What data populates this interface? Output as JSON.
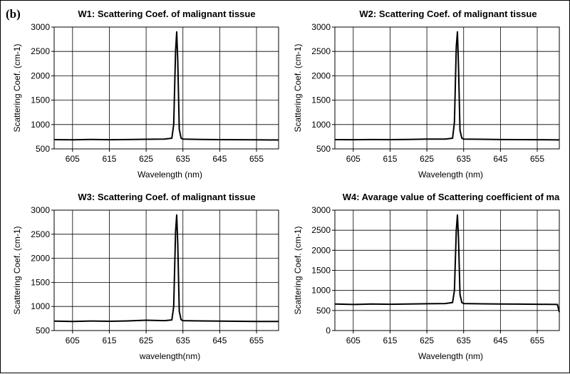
{
  "figure": {
    "panel_label": "(b)"
  },
  "chart_data": [
    {
      "type": "line",
      "title": "W1: Scattering Coef. of malignant tissue",
      "xlabel": "Wavelength (nm)",
      "ylabel": "Scattering Coef. (cm-1)",
      "xlim": [
        600,
        661
      ],
      "ylim": [
        500,
        3000
      ],
      "xticks": [
        605,
        615,
        625,
        635,
        645,
        655
      ],
      "yticks": [
        500,
        1000,
        1500,
        2000,
        2500,
        3000
      ],
      "grid": true,
      "series": [
        {
          "x": [
            600,
            605,
            610,
            615,
            620,
            625,
            630,
            632,
            632.5,
            633,
            633.3,
            633.6,
            634,
            634.5,
            635,
            640,
            645,
            650,
            655,
            661
          ],
          "y": [
            690,
            685,
            695,
            688,
            692,
            698,
            700,
            720,
            1000,
            2500,
            2900,
            2300,
            900,
            720,
            700,
            695,
            690,
            688,
            685,
            683
          ]
        }
      ]
    },
    {
      "type": "line",
      "title": "W2: Scattering Coef. of malignant tissue",
      "xlabel": "Wavelength (nm)",
      "ylabel": "Scattering Coef. (cm-1)",
      "xlim": [
        600,
        661
      ],
      "ylim": [
        500,
        3000
      ],
      "xticks": [
        605,
        615,
        625,
        635,
        645,
        655
      ],
      "yticks": [
        500,
        1000,
        1500,
        2000,
        2500,
        3000
      ],
      "grid": true,
      "series": [
        {
          "x": [
            600,
            605,
            610,
            615,
            620,
            625,
            630,
            632,
            632.5,
            633,
            633.3,
            633.6,
            634,
            634.5,
            635,
            640,
            645,
            650,
            655,
            661
          ],
          "y": [
            690,
            688,
            692,
            690,
            695,
            700,
            702,
            720,
            1050,
            2600,
            2900,
            2200,
            880,
            720,
            700,
            697,
            692,
            690,
            688,
            684
          ]
        }
      ]
    },
    {
      "type": "line",
      "title": "W3: Scattering Coef. of malignant tissue",
      "xlabel": "wavelength(nm)",
      "ylabel": "Scattering Coef. (cm-1)",
      "xlim": [
        600,
        661
      ],
      "ylim": [
        500,
        3000
      ],
      "xticks": [
        605,
        615,
        625,
        635,
        645,
        655
      ],
      "yticks": [
        500,
        1000,
        1500,
        2000,
        2500,
        3000
      ],
      "grid": true,
      "series": [
        {
          "x": [
            600,
            605,
            610,
            615,
            620,
            625,
            630,
            632,
            632.5,
            633,
            633.3,
            633.6,
            634,
            634.5,
            635,
            640,
            645,
            650,
            655,
            661
          ],
          "y": [
            695,
            690,
            698,
            692,
            700,
            715,
            705,
            720,
            1000,
            2550,
            2900,
            2300,
            900,
            725,
            705,
            700,
            695,
            692,
            690,
            688
          ]
        }
      ]
    },
    {
      "type": "line",
      "title": "W4: Avarage value of Scattering coefficient of ma",
      "xlabel": "Wavelength (nm)",
      "ylabel": "Scattering Coef. (cm-1)",
      "xlim": [
        600,
        661
      ],
      "ylim": [
        0,
        3000
      ],
      "xticks": [
        605,
        615,
        625,
        635,
        645,
        655
      ],
      "yticks": [
        0,
        500,
        1000,
        1500,
        2000,
        2500,
        3000
      ],
      "grid": true,
      "series": [
        {
          "x": [
            600,
            605,
            610,
            615,
            620,
            625,
            630,
            632,
            632.5,
            633,
            633.3,
            633.6,
            634,
            634.5,
            635,
            640,
            645,
            650,
            655,
            660.5,
            661
          ],
          "y": [
            660,
            650,
            660,
            655,
            662,
            668,
            672,
            700,
            1000,
            2500,
            2880,
            2300,
            900,
            700,
            672,
            665,
            660,
            658,
            655,
            650,
            460
          ]
        }
      ]
    }
  ]
}
